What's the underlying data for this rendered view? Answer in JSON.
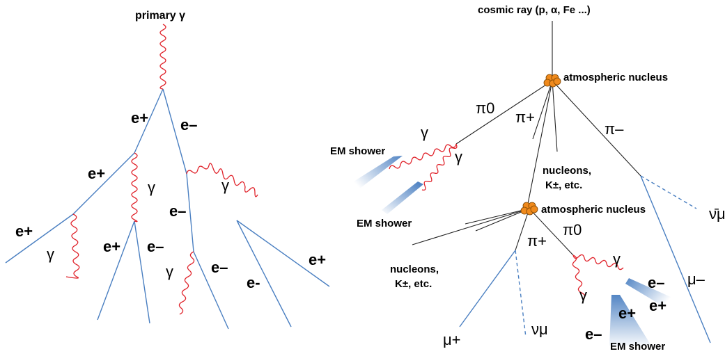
{
  "left": {
    "title": "primary γ",
    "labels": {
      "e_plus_1": "e+",
      "e_minus_1": "e–",
      "e_plus_2": "e+",
      "gamma_1": "γ",
      "gamma_2": "γ",
      "e_plus_3": "e+",
      "gamma_3": "γ",
      "e_plus_4": "e+",
      "e_minus_2": "e–",
      "e_minus_3": "e–",
      "gamma_4": "γ",
      "e_minus_4": "e–",
      "e_minus_5": "e-",
      "e_plus_5": "e+"
    }
  },
  "right": {
    "title": "cosmic ray (p, α, Fe ...)",
    "labels": {
      "nucleus_1": "atmospheric nucleus",
      "pi0_1": "π0",
      "pi_plus_1": "π+",
      "pi_minus": "π–",
      "gamma_a": "γ",
      "gamma_b": "γ",
      "em_shower_1": "EM shower",
      "em_shower_2": "EM shower",
      "nucleons_1": "nucleons,",
      "kaons_1": "K±,  etc.",
      "nucleus_2": "atmospheric nucleus",
      "anti_nu_mu": "ν̄μ",
      "pi_plus_2": "π+",
      "pi0_2": "π0",
      "nucleons_2": "nucleons,",
      "kaons_2": "K±,  etc.",
      "gamma_c": "γ",
      "gamma_d": "γ",
      "e_minus_a": "e–",
      "e_plus_a": "e+",
      "e_plus_b": "e+",
      "e_minus_b": "e–",
      "mu_minus": "μ–",
      "mu_plus": "μ+",
      "nu_mu": "νμ",
      "em_shower_3": "EM shower"
    }
  },
  "colors": {
    "lepton_line": "#4a7fc1",
    "photon_line": "#e0222a",
    "hadron_line": "#222222",
    "nucleus": "#f08a1c"
  }
}
